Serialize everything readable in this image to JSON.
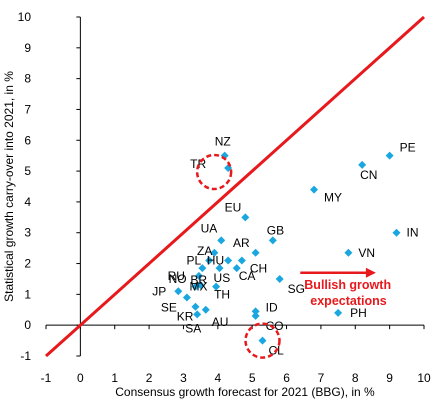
{
  "chart_data": {
    "type": "scatter",
    "xlabel": "Consensus growth forecast for 2021 (BBG), in %",
    "ylabel": "Statistical growth carry-over into 2021, in %",
    "xlim": [
      -1,
      10
    ],
    "ylim": [
      -1,
      10
    ],
    "xticks": [
      -1,
      0,
      1,
      2,
      3,
      4,
      5,
      6,
      7,
      8,
      9,
      10
    ],
    "yticks": [
      -1,
      0,
      1,
      2,
      3,
      4,
      5,
      6,
      7,
      8,
      9,
      10
    ],
    "grid": false,
    "marker_color": "#1aa7e0",
    "line_color": "#e8191d",
    "reference_line": {
      "from": [
        -1,
        -1
      ],
      "to": [
        10,
        10
      ]
    },
    "points": [
      {
        "label": "PE",
        "x": 9.0,
        "y": 5.5
      },
      {
        "label": "CN",
        "x": 8.2,
        "y": 5.2
      },
      {
        "label": "MY",
        "x": 6.8,
        "y": 4.4
      },
      {
        "label": "IN",
        "x": 9.2,
        "y": 3.0
      },
      {
        "label": "VN",
        "x": 7.8,
        "y": 2.35
      },
      {
        "label": "PH",
        "x": 7.5,
        "y": 0.4
      },
      {
        "label": "NZ",
        "x": 4.2,
        "y": 5.5
      },
      {
        "label": "TR",
        "x": 4.3,
        "y": 5.1
      },
      {
        "label": "EU",
        "x": 4.8,
        "y": 3.5
      },
      {
        "label": "UA",
        "x": 4.1,
        "y": 2.75
      },
      {
        "label": "GB",
        "x": 5.6,
        "y": 2.75
      },
      {
        "label": "ZA",
        "x": 3.9,
        "y": 2.35
      },
      {
        "label": "AR",
        "x": 5.1,
        "y": 2.35
      },
      {
        "label": "PL",
        "x": 3.75,
        "y": 2.1
      },
      {
        "label": "HU",
        "x": 4.3,
        "y": 2.1
      },
      {
        "label": "CH",
        "x": 4.7,
        "y": 2.1
      },
      {
        "label": "CA",
        "x": 4.55,
        "y": 1.85
      },
      {
        "label": "US",
        "x": 4.05,
        "y": 1.85
      },
      {
        "label": "BR",
        "x": 3.55,
        "y": 1.85
      },
      {
        "label": "RU",
        "x": 3.45,
        "y": 1.6
      },
      {
        "label": "NO",
        "x": 3.5,
        "y": 1.3
      },
      {
        "label": "SG",
        "x": 5.8,
        "y": 1.5
      },
      {
        "label": "MX",
        "x": 3.35,
        "y": 1.25
      },
      {
        "label": "TH",
        "x": 3.95,
        "y": 1.25
      },
      {
        "label": "JP",
        "x": 2.85,
        "y": 1.1
      },
      {
        "label": "SE",
        "x": 3.1,
        "y": 0.9
      },
      {
        "label": "ID",
        "x": 5.1,
        "y": 0.45
      },
      {
        "label": "CO",
        "x": 5.1,
        "y": 0.3
      },
      {
        "label": "KR",
        "x": 3.35,
        "y": 0.6
      },
      {
        "label": "AU",
        "x": 3.65,
        "y": 0.5
      },
      {
        "label": "SA",
        "x": 3.4,
        "y": 0.35
      },
      {
        "label": "CL",
        "x": 5.3,
        "y": -0.5
      }
    ],
    "circled": [
      "TR",
      "CL"
    ],
    "annotation": {
      "text_line1": "Bullish growth",
      "text_line2": "expectations",
      "color": "#e8191d",
      "arrow_from": [
        6.4,
        1.7
      ],
      "arrow_to": [
        8.6,
        1.7
      ]
    }
  }
}
